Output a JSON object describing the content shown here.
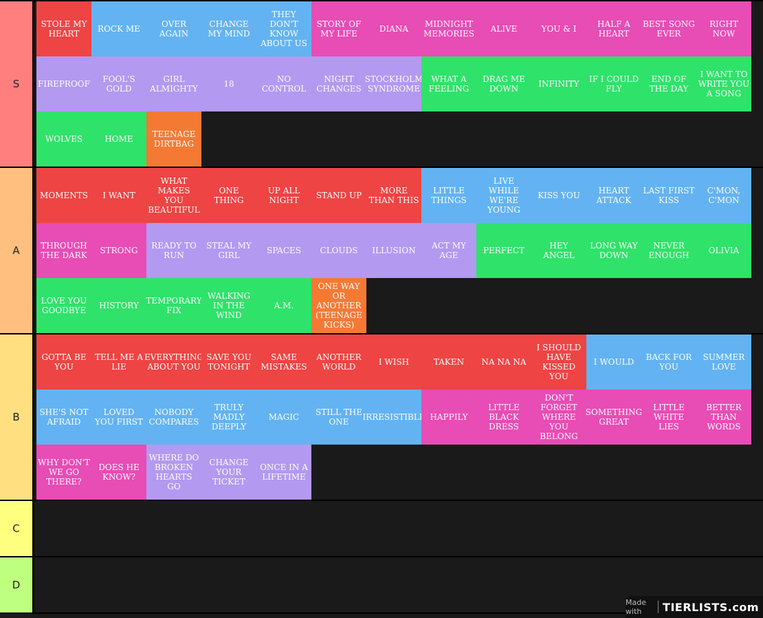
{
  "colors": {
    "red": "#ee4444",
    "blue": "#63b3f2",
    "pink": "#e84cb5",
    "purple": "#b399f0",
    "green": "#2fe26a",
    "orange": "#f47a34"
  },
  "tiers": [
    {
      "label": "S",
      "color": "#ff7f7f",
      "items": [
        {
          "text": "STOLE MY HEART",
          "c": "red"
        },
        {
          "text": "ROCK ME",
          "c": "blue"
        },
        {
          "text": "OVER AGAIN",
          "c": "blue"
        },
        {
          "text": "CHANGE MY MIND",
          "c": "blue"
        },
        {
          "text": "THEY DON'T KNOW ABOUT US",
          "c": "blue"
        },
        {
          "text": "STORY OF MY LIFE",
          "c": "pink"
        },
        {
          "text": "DIANA",
          "c": "pink"
        },
        {
          "text": "MIDNIGHT MEMORIES",
          "c": "pink"
        },
        {
          "text": "ALIVE",
          "c": "pink"
        },
        {
          "text": "YOU & I",
          "c": "pink"
        },
        {
          "text": "HALF A HEART",
          "c": "pink"
        },
        {
          "text": "BEST SONG EVER",
          "c": "pink"
        },
        {
          "text": "RIGHT NOW",
          "c": "pink"
        },
        {
          "text": "FIREPROOF",
          "c": "purple"
        },
        {
          "text": "FOOL'S GOLD",
          "c": "purple"
        },
        {
          "text": "GIRL ALMIGHTY",
          "c": "purple"
        },
        {
          "text": "18",
          "c": "purple"
        },
        {
          "text": "NO CONTROL",
          "c": "purple"
        },
        {
          "text": "NIGHT CHANGES",
          "c": "purple"
        },
        {
          "text": "STOCKHOLM SYNDROME",
          "c": "purple"
        },
        {
          "text": "WHAT A FEELING",
          "c": "green"
        },
        {
          "text": "DRAG ME DOWN",
          "c": "green"
        },
        {
          "text": "INFINITY",
          "c": "green"
        },
        {
          "text": "IF I COULD FLY",
          "c": "green"
        },
        {
          "text": "END OF THE DAY",
          "c": "green"
        },
        {
          "text": "I WANT TO WRITE YOU A SONG",
          "c": "green"
        },
        {
          "text": "WOLVES",
          "c": "green"
        },
        {
          "text": "HOME",
          "c": "green"
        },
        {
          "text": "TEENAGE DIRTBAG",
          "c": "orange"
        }
      ]
    },
    {
      "label": "A",
      "color": "#ffbf7f",
      "items": [
        {
          "text": "MOMENTS",
          "c": "red"
        },
        {
          "text": "I WANT",
          "c": "red"
        },
        {
          "text": "WHAT MAKES YOU BEAUTIFUL",
          "c": "red"
        },
        {
          "text": "ONE THING",
          "c": "red"
        },
        {
          "text": "UP ALL NIGHT",
          "c": "red"
        },
        {
          "text": "STAND UP",
          "c": "red"
        },
        {
          "text": "MORE THAN THIS",
          "c": "red"
        },
        {
          "text": "LITTLE THINGS",
          "c": "blue"
        },
        {
          "text": "LIVE WHILE WE'RE YOUNG",
          "c": "blue"
        },
        {
          "text": "KISS YOU",
          "c": "blue"
        },
        {
          "text": "HEART ATTACK",
          "c": "blue"
        },
        {
          "text": "LAST FIRST KISS",
          "c": "blue"
        },
        {
          "text": "C'MON, C'MON",
          "c": "blue"
        },
        {
          "text": "THROUGH THE DARK",
          "c": "pink"
        },
        {
          "text": "STRONG",
          "c": "pink"
        },
        {
          "text": "READY TO RUN",
          "c": "purple"
        },
        {
          "text": "STEAL MY GIRL",
          "c": "purple"
        },
        {
          "text": "SPACES",
          "c": "purple"
        },
        {
          "text": "CLOUDS",
          "c": "purple"
        },
        {
          "text": "ILLUSION",
          "c": "purple"
        },
        {
          "text": "ACT MY AGE",
          "c": "purple"
        },
        {
          "text": "PERFECT",
          "c": "green"
        },
        {
          "text": "HEY ANGEL",
          "c": "green"
        },
        {
          "text": "LONG WAY DOWN",
          "c": "green"
        },
        {
          "text": "NEVER ENOUGH",
          "c": "green"
        },
        {
          "text": "OLIVIA",
          "c": "green"
        },
        {
          "text": "LOVE YOU GOODBYE",
          "c": "green"
        },
        {
          "text": "HISTORY",
          "c": "green"
        },
        {
          "text": "TEMPORARY FIX",
          "c": "green"
        },
        {
          "text": "WALKING IN THE WIND",
          "c": "green"
        },
        {
          "text": "A.M.",
          "c": "green"
        },
        {
          "text": "ONE WAY OR ANOTHER (TEENAGE KICKS)",
          "c": "orange"
        }
      ]
    },
    {
      "label": "B",
      "color": "#ffdf7f",
      "items": [
        {
          "text": "GOTTA BE YOU",
          "c": "red"
        },
        {
          "text": "TELL ME A LIE",
          "c": "red"
        },
        {
          "text": "EVERYTHING ABOUT YOU",
          "c": "red"
        },
        {
          "text": "SAVE YOU TONIGHT",
          "c": "red"
        },
        {
          "text": "SAME MISTAKES",
          "c": "red"
        },
        {
          "text": "ANOTHER WORLD",
          "c": "red"
        },
        {
          "text": "I WISH",
          "c": "red"
        },
        {
          "text": "TAKEN",
          "c": "red"
        },
        {
          "text": "NA NA NA",
          "c": "red"
        },
        {
          "text": "I SHOULD HAVE KISSED YOU",
          "c": "red"
        },
        {
          "text": "I WOULD",
          "c": "blue"
        },
        {
          "text": "BACK FOR YOU",
          "c": "blue"
        },
        {
          "text": "SUMMER LOVE",
          "c": "blue"
        },
        {
          "text": "SHE'S NOT AFRAID",
          "c": "blue"
        },
        {
          "text": "LOVED YOU FIRST",
          "c": "blue"
        },
        {
          "text": "NOBODY COMPARES",
          "c": "blue"
        },
        {
          "text": "TRULY MADLY DEEPLY",
          "c": "blue"
        },
        {
          "text": "MAGIC",
          "c": "blue"
        },
        {
          "text": "STILL THE ONE",
          "c": "blue"
        },
        {
          "text": "IRRESISTIBLE",
          "c": "blue"
        },
        {
          "text": "HAPPILY",
          "c": "pink"
        },
        {
          "text": "LITTLE BLACK DRESS",
          "c": "pink"
        },
        {
          "text": "DON'T FORGET WHERE YOU BELONG",
          "c": "pink"
        },
        {
          "text": "SOMETHING GREAT",
          "c": "pink"
        },
        {
          "text": "LITTLE WHITE LIES",
          "c": "pink"
        },
        {
          "text": "BETTER THAN WORDS",
          "c": "pink"
        },
        {
          "text": "WHY DON'T WE GO THERE?",
          "c": "pink"
        },
        {
          "text": "DOES HE KNOW?",
          "c": "pink"
        },
        {
          "text": "WHERE DO BROKEN HEARTS GO",
          "c": "purple"
        },
        {
          "text": "CHANGE YOUR TICKET",
          "c": "purple"
        },
        {
          "text": "ONCE IN A LIFETIME",
          "c": "purple"
        }
      ]
    },
    {
      "label": "C",
      "color": "#ffff7f",
      "items": []
    },
    {
      "label": "D",
      "color": "#bfff7f",
      "items": []
    }
  ],
  "badge": {
    "made_with": "Made with",
    "logo": "TIERLISTS.com"
  }
}
